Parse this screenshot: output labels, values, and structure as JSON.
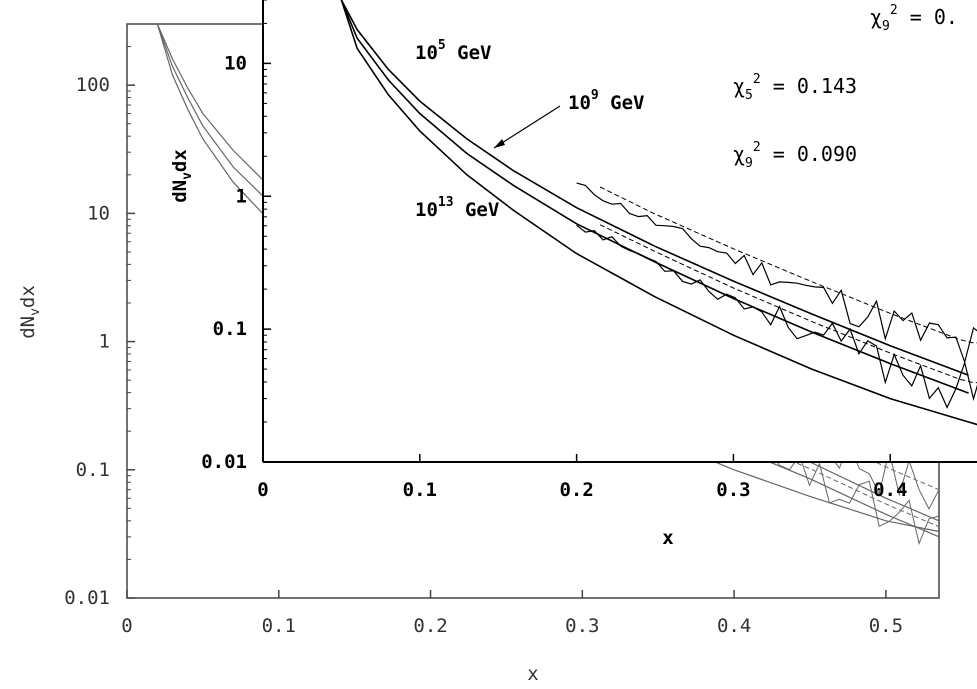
{
  "chart_data": [
    {
      "type": "line",
      "xlabel": "x",
      "ylabel": "dN_v dx",
      "ylabel_main": "dN",
      "ylabel_sub": "v",
      "ylabel_tail": "dx",
      "xlim": [
        0,
        0.535
      ],
      "ylim": [
        0.01,
        300
      ],
      "y_scale": "log",
      "x_ticks": [
        "0",
        "0.1",
        "0.2",
        "0.3",
        "0.4",
        "0.5"
      ],
      "y_ticks": [
        "0.01",
        "0.1",
        "1",
        "10",
        "100"
      ],
      "annotations": [
        {
          "base": "10",
          "exp": "5",
          "unit": "GeV"
        },
        {
          "base": "10",
          "exp": "9",
          "unit": "GeV"
        },
        {
          "base": "10",
          "exp": "13",
          "unit": "GeV"
        }
      ],
      "series": [
        {
          "x": [
            0.02,
            0.03,
            0.04,
            0.05,
            0.07,
            0.09,
            0.12,
            0.15,
            0.2,
            0.25,
            0.3,
            0.35,
            0.4,
            0.45,
            0.5,
            0.535
          ],
          "values": [
            300,
            160,
            95,
            60,
            31,
            18,
            9,
            5.2,
            2.4,
            1.25,
            0.68,
            0.38,
            0.21,
            0.115,
            0.06,
            0.04
          ]
        },
        {
          "x": [
            0.02,
            0.03,
            0.04,
            0.05,
            0.07,
            0.09,
            0.12,
            0.15,
            0.2,
            0.25,
            0.3,
            0.35,
            0.4,
            0.45,
            0.5,
            0.535
          ],
          "values": [
            300,
            140,
            80,
            48,
            23,
            13.5,
            6.6,
            3.8,
            1.75,
            0.9,
            0.49,
            0.27,
            0.15,
            0.085,
            0.045,
            0.03
          ]
        },
        {
          "x": [
            0.02,
            0.03,
            0.04,
            0.05,
            0.07,
            0.09,
            0.12,
            0.15,
            0.2,
            0.25,
            0.3,
            0.35,
            0.4,
            0.45,
            0.5,
            0.535
          ],
          "values": [
            300,
            120,
            65,
            38,
            17.5,
            9.8,
            4.6,
            2.6,
            1.15,
            0.58,
            0.31,
            0.175,
            0.1,
            0.062,
            0.04,
            0.033
          ]
        }
      ]
    },
    {
      "type": "line",
      "xlabel": "x",
      "ylabel": "dN_v dx",
      "ylabel_main": "dN",
      "ylabel_sub": "v",
      "ylabel_tail": "dx",
      "xlim": [
        0,
        0.47
      ],
      "ylim": [
        0.01,
        30
      ],
      "y_scale": "log",
      "x_ticks": [
        "0",
        "0.1",
        "0.2",
        "0.3",
        "0.4"
      ],
      "y_ticks": [
        "0.01",
        "0.1",
        "1",
        "10"
      ],
      "annotations": [
        {
          "base": "10",
          "exp": "5",
          "unit": "GeV"
        },
        {
          "base": "10",
          "exp": "9",
          "unit": "GeV"
        },
        {
          "base": "10",
          "exp": "13",
          "unit": "GeV"
        }
      ],
      "chi_annotations": [
        {
          "sym": "χ",
          "sub": "5",
          "sup": "2",
          "text": " = 0.143"
        },
        {
          "sym": "χ",
          "sub": "9",
          "sup": "2",
          "text": " = 0.090"
        },
        {
          "sym": "χ",
          "sub": "9",
          "sup": "2",
          "text": " = 0."
        }
      ],
      "series": [
        {
          "x": [
            0.05,
            0.06,
            0.08,
            0.1,
            0.13,
            0.16,
            0.2,
            0.25,
            0.3,
            0.35,
            0.4,
            0.45
          ],
          "values": [
            30,
            18,
            9,
            5.2,
            2.7,
            1.55,
            0.82,
            0.42,
            0.23,
            0.13,
            0.075,
            0.045
          ]
        },
        {
          "x": [
            0.05,
            0.06,
            0.08,
            0.1,
            0.13,
            0.16,
            0.2,
            0.25,
            0.3,
            0.35,
            0.4,
            0.45
          ],
          "values": [
            30,
            15.5,
            7.5,
            4.2,
            2.1,
            1.2,
            0.62,
            0.32,
            0.17,
            0.095,
            0.055,
            0.033
          ]
        },
        {
          "x": [
            0.05,
            0.06,
            0.08,
            0.1,
            0.13,
            0.16,
            0.2,
            0.25,
            0.3,
            0.35,
            0.4,
            0.45,
            0.47
          ],
          "values": [
            30,
            13,
            5.8,
            3.1,
            1.45,
            0.78,
            0.37,
            0.175,
            0.09,
            0.05,
            0.03,
            0.02,
            0.017
          ]
        }
      ]
    }
  ]
}
